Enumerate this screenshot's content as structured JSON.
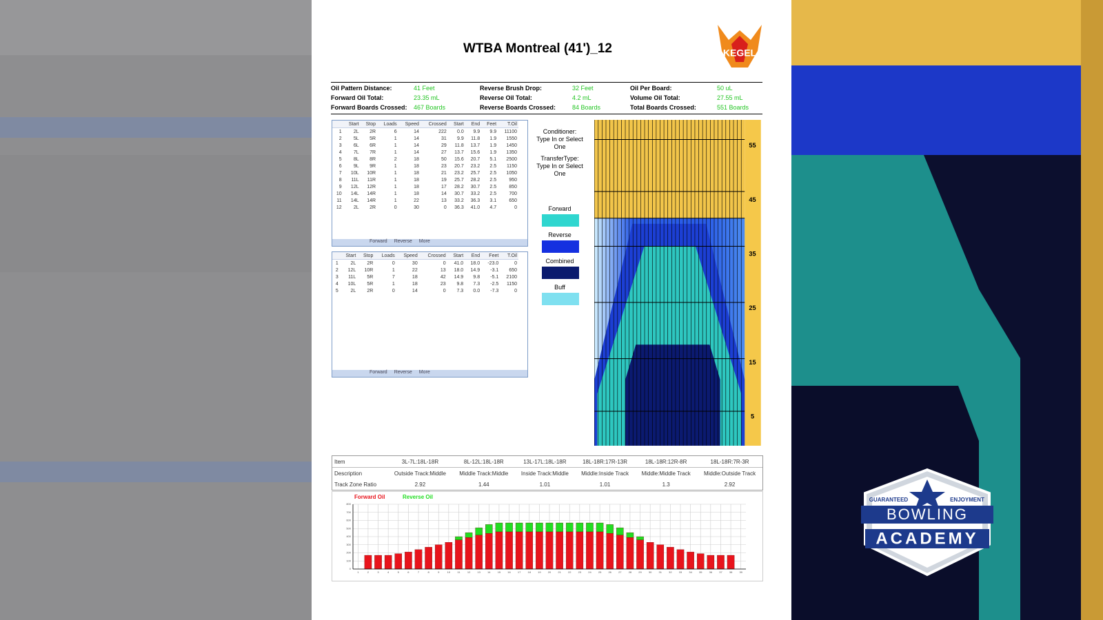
{
  "header": {
    "title": "WTBA Montreal (41')_12",
    "logo": "KEGEL"
  },
  "summary": [
    [
      {
        "label": "Oil Pattern Distance:",
        "value": "41 Feet"
      },
      {
        "label": "Reverse Brush Drop:",
        "value": "32 Feet"
      },
      {
        "label": "Oil Per Board:",
        "value": "50 uL"
      }
    ],
    [
      {
        "label": "Forward Oil Total:",
        "value": "23.35 mL"
      },
      {
        "label": "Reverse Oil Total:",
        "value": "4.2 mL"
      },
      {
        "label": "Volume Oil Total:",
        "value": "27.55 mL"
      }
    ],
    [
      {
        "label": "Forward Boards Crossed:",
        "value": "467 Boards"
      },
      {
        "label": "Reverse Boards Crossed:",
        "value": "84 Boards"
      },
      {
        "label": "Total Boards Crossed:",
        "value": "551 Boards"
      }
    ]
  ],
  "forward_table": {
    "columns": [
      "Start",
      "Stop",
      "Loads",
      "Speed",
      "Crossed",
      "Start",
      "End",
      "Feet",
      "T.Oil"
    ],
    "rows": [
      [
        "1",
        "2L",
        "2R",
        "6",
        "14",
        "222",
        "0.0",
        "9.9",
        "9.9",
        "11100"
      ],
      [
        "2",
        "5L",
        "5R",
        "1",
        "14",
        "31",
        "9.9",
        "11.8",
        "1.9",
        "1550"
      ],
      [
        "3",
        "6L",
        "6R",
        "1",
        "14",
        "29",
        "11.8",
        "13.7",
        "1.9",
        "1450"
      ],
      [
        "4",
        "7L",
        "7R",
        "1",
        "14",
        "27",
        "13.7",
        "15.6",
        "1.9",
        "1350"
      ],
      [
        "5",
        "8L",
        "8R",
        "2",
        "18",
        "50",
        "15.6",
        "20.7",
        "5.1",
        "2500"
      ],
      [
        "6",
        "9L",
        "9R",
        "1",
        "18",
        "23",
        "20.7",
        "23.2",
        "2.5",
        "1150"
      ],
      [
        "7",
        "10L",
        "10R",
        "1",
        "18",
        "21",
        "23.2",
        "25.7",
        "2.5",
        "1050"
      ],
      [
        "8",
        "11L",
        "11R",
        "1",
        "18",
        "19",
        "25.7",
        "28.2",
        "2.5",
        "950"
      ],
      [
        "9",
        "12L",
        "12R",
        "1",
        "18",
        "17",
        "28.2",
        "30.7",
        "2.5",
        "850"
      ],
      [
        "10",
        "14L",
        "14R",
        "1",
        "18",
        "14",
        "30.7",
        "33.2",
        "2.5",
        "700"
      ],
      [
        "11",
        "14L",
        "14R",
        "1",
        "22",
        "13",
        "33.2",
        "36.3",
        "3.1",
        "650"
      ],
      [
        "12",
        "2L",
        "2R",
        "0",
        "30",
        "0",
        "36.3",
        "41.0",
        "4.7",
        "0"
      ]
    ],
    "tabs": [
      "Forward",
      "Reverse",
      "More"
    ]
  },
  "reverse_table": {
    "columns": [
      "Start",
      "Stop",
      "Loads",
      "Speed",
      "Crossed",
      "Start",
      "End",
      "Feet",
      "T.Oil"
    ],
    "rows": [
      [
        "1",
        "2L",
        "2R",
        "0",
        "30",
        "0",
        "41.0",
        "18.0",
        "-23.0",
        "0"
      ],
      [
        "2",
        "12L",
        "10R",
        "1",
        "22",
        "13",
        "18.0",
        "14.9",
        "-3.1",
        "650"
      ],
      [
        "3",
        "11L",
        "5R",
        "7",
        "18",
        "42",
        "14.9",
        "9.8",
        "-5.1",
        "2100"
      ],
      [
        "4",
        "10L",
        "5R",
        "1",
        "18",
        "23",
        "9.8",
        "7.3",
        "-2.5",
        "1150"
      ],
      [
        "5",
        "2L",
        "2R",
        "0",
        "14",
        "0",
        "7.3",
        "0.0",
        "-7.3",
        "0"
      ]
    ],
    "tabs": [
      "Forward",
      "Reverse",
      "More"
    ]
  },
  "legend": {
    "conditioner": [
      "Conditioner:",
      "Type In or Select",
      "One"
    ],
    "transfer": [
      "TransferType:",
      "Type In or Select",
      "One"
    ],
    "items": [
      {
        "name": "Forward",
        "color": "#2fd6cf"
      },
      {
        "name": "Reverse",
        "color": "#1530e0"
      },
      {
        "name": "Combined",
        "color": "#0a1a6e"
      },
      {
        "name": "Buff",
        "color": "#7fe0f0"
      }
    ]
  },
  "pattern_scale": [
    55,
    45,
    35,
    25,
    15,
    5
  ],
  "zone_table": {
    "rows": [
      [
        "Item",
        "3L-7L:18L-18R",
        "8L-12L:18L-18R",
        "13L-17L:18L-18R",
        "18L-18R:17R-13R",
        "18L-18R:12R-8R",
        "18L-18R:7R-3R"
      ],
      [
        "Description",
        "Outside Track:Middle",
        "Middle Track:Middle",
        "Inside Track:Middle",
        "Middle:Inside Track",
        "Middle:Middle Track",
        "Middle:Outside Track"
      ],
      [
        "Track Zone Ratio",
        "2.92",
        "1.44",
        "1.01",
        "1.01",
        "1.3",
        "2.92"
      ]
    ]
  },
  "oil_chart": {
    "type": "bar",
    "stacked": true,
    "categories": [
      "1",
      "2",
      "3",
      "4",
      "5",
      "6",
      "7",
      "8",
      "9",
      "10",
      "11",
      "12",
      "13",
      "14",
      "15",
      "16",
      "17",
      "18",
      "19",
      "20",
      "21",
      "22",
      "23",
      "24",
      "25",
      "26",
      "27",
      "28",
      "29",
      "30",
      "31",
      "32",
      "33",
      "34",
      "35",
      "36",
      "37",
      "38",
      "39"
    ],
    "series": [
      {
        "name": "Forward Oil",
        "color": "#e8141c",
        "values": [
          0,
          170,
          170,
          170,
          190,
          210,
          240,
          270,
          300,
          330,
          360,
          390,
          420,
          440,
          460,
          460,
          460,
          460,
          460,
          460,
          460,
          460,
          460,
          460,
          460,
          440,
          420,
          390,
          360,
          330,
          300,
          270,
          240,
          210,
          190,
          170,
          170,
          170,
          0
        ]
      },
      {
        "name": "Reverse Oil",
        "color": "#22dd22",
        "values": [
          0,
          0,
          0,
          0,
          0,
          0,
          0,
          0,
          0,
          0,
          40,
          60,
          90,
          110,
          110,
          110,
          110,
          110,
          110,
          110,
          110,
          110,
          110,
          110,
          110,
          110,
          90,
          60,
          40,
          0,
          0,
          0,
          0,
          0,
          0,
          0,
          0,
          0,
          0
        ]
      }
    ],
    "ylim": [
      0,
      800
    ],
    "yticks": [
      0,
      100,
      200,
      300,
      400,
      500,
      600,
      700,
      800
    ],
    "grid": true
  },
  "badge": {
    "top_left": "GUARANTEED",
    "top_right": "ENJOYMENT",
    "line1": "BOWLING",
    "line2": "ACADEMY"
  }
}
